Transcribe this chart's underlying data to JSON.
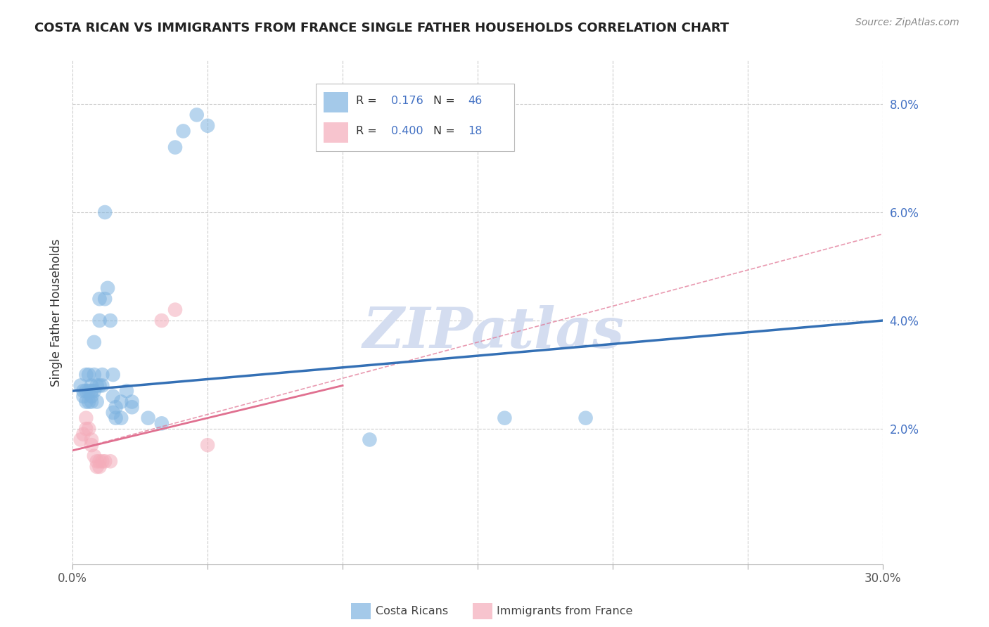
{
  "title": "COSTA RICAN VS IMMIGRANTS FROM FRANCE SINGLE FATHER HOUSEHOLDS CORRELATION CHART",
  "source": "Source: ZipAtlas.com",
  "ylabel": "Single Father Households",
  "xlim": [
    0.0,
    0.3
  ],
  "ylim": [
    -0.005,
    0.088
  ],
  "x_ticks": [
    0.0,
    0.05,
    0.1,
    0.15,
    0.2,
    0.25,
    0.3
  ],
  "x_tick_labels_show": [
    "0.0%",
    "",
    "",
    "",
    "",
    "",
    "30.0%"
  ],
  "y_ticks_right": [
    0.02,
    0.04,
    0.06,
    0.08
  ],
  "y_tick_labels_right": [
    "2.0%",
    "4.0%",
    "6.0%",
    "8.0%"
  ],
  "watermark": "ZIPatlas",
  "watermark_color": "#d4ddf0",
  "background_color": "#ffffff",
  "grid_color": "#cccccc",
  "blue_color": "#7eb3e0",
  "pink_color": "#f4acba",
  "blue_line_color": "#3470b5",
  "pink_line_color": "#e07090",
  "blue_scatter": [
    [
      0.003,
      0.028
    ],
    [
      0.004,
      0.027
    ],
    [
      0.004,
      0.026
    ],
    [
      0.005,
      0.03
    ],
    [
      0.005,
      0.027
    ],
    [
      0.005,
      0.025
    ],
    [
      0.006,
      0.027
    ],
    [
      0.006,
      0.025
    ],
    [
      0.006,
      0.03
    ],
    [
      0.007,
      0.026
    ],
    [
      0.007,
      0.028
    ],
    [
      0.007,
      0.025
    ],
    [
      0.007,
      0.027
    ],
    [
      0.008,
      0.03
    ],
    [
      0.008,
      0.027
    ],
    [
      0.008,
      0.036
    ],
    [
      0.009,
      0.028
    ],
    [
      0.009,
      0.025
    ],
    [
      0.01,
      0.04
    ],
    [
      0.01,
      0.044
    ],
    [
      0.01,
      0.028
    ],
    [
      0.011,
      0.03
    ],
    [
      0.011,
      0.028
    ],
    [
      0.012,
      0.044
    ],
    [
      0.012,
      0.06
    ],
    [
      0.013,
      0.046
    ],
    [
      0.014,
      0.04
    ],
    [
      0.015,
      0.03
    ],
    [
      0.015,
      0.026
    ],
    [
      0.015,
      0.023
    ],
    [
      0.016,
      0.024
    ],
    [
      0.016,
      0.022
    ],
    [
      0.018,
      0.025
    ],
    [
      0.018,
      0.022
    ],
    [
      0.02,
      0.027
    ],
    [
      0.022,
      0.025
    ],
    [
      0.022,
      0.024
    ],
    [
      0.028,
      0.022
    ],
    [
      0.033,
      0.021
    ],
    [
      0.038,
      0.072
    ],
    [
      0.041,
      0.075
    ],
    [
      0.046,
      0.078
    ],
    [
      0.05,
      0.076
    ],
    [
      0.16,
      0.022
    ],
    [
      0.19,
      0.022
    ],
    [
      0.11,
      0.018
    ]
  ],
  "pink_scatter": [
    [
      0.003,
      0.018
    ],
    [
      0.004,
      0.019
    ],
    [
      0.005,
      0.02
    ],
    [
      0.005,
      0.022
    ],
    [
      0.006,
      0.02
    ],
    [
      0.007,
      0.018
    ],
    [
      0.007,
      0.017
    ],
    [
      0.008,
      0.015
    ],
    [
      0.009,
      0.014
    ],
    [
      0.009,
      0.013
    ],
    [
      0.01,
      0.013
    ],
    [
      0.01,
      0.014
    ],
    [
      0.011,
      0.014
    ],
    [
      0.012,
      0.014
    ],
    [
      0.014,
      0.014
    ],
    [
      0.033,
      0.04
    ],
    [
      0.038,
      0.042
    ],
    [
      0.05,
      0.017
    ]
  ],
  "blue_line": {
    "x0": 0.0,
    "y0": 0.027,
    "x1": 0.3,
    "y1": 0.04
  },
  "pink_line_solid": {
    "x0": 0.0,
    "y0": 0.016,
    "x1": 0.1,
    "y1": 0.028
  },
  "pink_line_dashed": {
    "x0": 0.0,
    "y0": 0.016,
    "x1": 0.3,
    "y1": 0.056
  },
  "legend_blue_R": "0.176",
  "legend_blue_N": "46",
  "legend_pink_R": "0.400",
  "legend_pink_N": "18",
  "bottom_legend_blue": "Costa Ricans",
  "bottom_legend_pink": "Immigrants from France"
}
